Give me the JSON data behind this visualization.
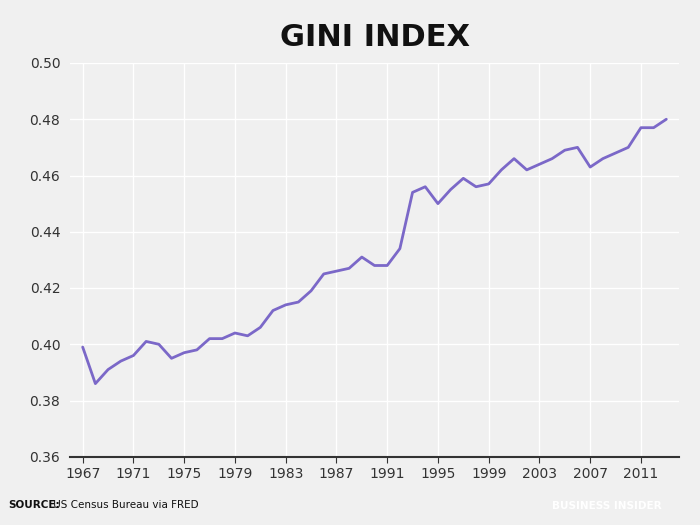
{
  "title": "GINI INDEX",
  "title_fontsize": 22,
  "title_fontweight": "bold",
  "line_color": "#7b68c8",
  "line_width": 2.0,
  "background_color": "#f0f0f0",
  "plot_bg_color": "#f0f0f0",
  "grid_color": "#ffffff",
  "source_label_bold": "SOURCE:",
  "source_label_rest": " US Census Bureau via FRED",
  "brand_text": "BUSINESS INSIDER",
  "brand_bg": "#1a3a5c",
  "brand_fg": "#ffffff",
  "strip_bg": "#cccccc",
  "xlim": [
    1966,
    2014
  ],
  "ylim": [
    0.36,
    0.5
  ],
  "xticks": [
    1967,
    1971,
    1975,
    1979,
    1983,
    1987,
    1991,
    1995,
    1999,
    2003,
    2007,
    2011
  ],
  "yticks": [
    0.36,
    0.38,
    0.4,
    0.42,
    0.44,
    0.46,
    0.48,
    0.5
  ],
  "years": [
    1967,
    1968,
    1969,
    1970,
    1971,
    1972,
    1973,
    1974,
    1975,
    1976,
    1977,
    1978,
    1979,
    1980,
    1981,
    1982,
    1983,
    1984,
    1985,
    1986,
    1987,
    1988,
    1989,
    1990,
    1991,
    1992,
    1993,
    1994,
    1995,
    1996,
    1997,
    1998,
    1999,
    2000,
    2001,
    2002,
    2003,
    2004,
    2005,
    2006,
    2007,
    2008,
    2009,
    2010,
    2011,
    2012,
    2013
  ],
  "values": [
    0.399,
    0.386,
    0.391,
    0.394,
    0.396,
    0.401,
    0.4,
    0.395,
    0.397,
    0.398,
    0.402,
    0.402,
    0.404,
    0.403,
    0.406,
    0.412,
    0.414,
    0.415,
    0.419,
    0.425,
    0.426,
    0.427,
    0.431,
    0.428,
    0.428,
    0.434,
    0.454,
    0.456,
    0.45,
    0.455,
    0.459,
    0.456,
    0.457,
    0.462,
    0.466,
    0.462,
    0.464,
    0.466,
    0.469,
    0.47,
    0.463,
    0.466,
    0.468,
    0.47,
    0.477,
    0.477,
    0.48
  ]
}
